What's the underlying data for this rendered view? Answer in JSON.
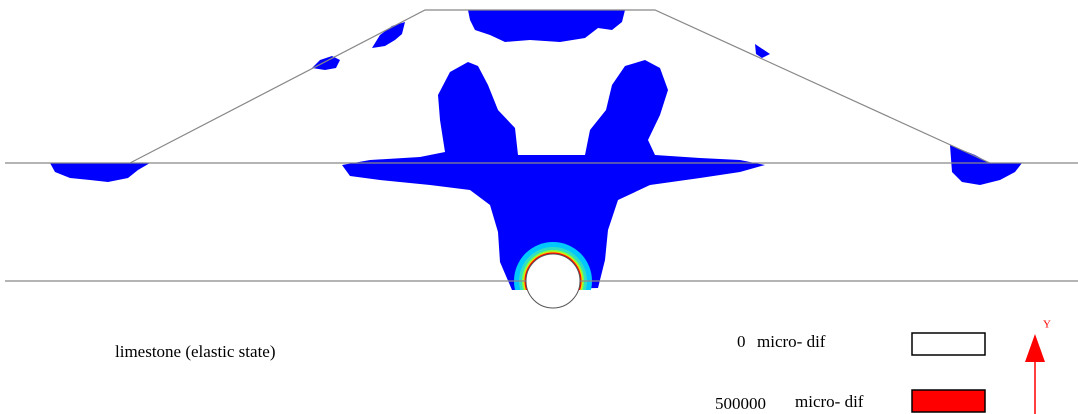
{
  "material_label": "limestone (elastic state)",
  "legend": {
    "items": [
      {
        "value": "0",
        "unit": "micro- dif"
      },
      {
        "value": "500000",
        "unit": "micro- dif"
      }
    ]
  },
  "axis": {
    "label": "Y"
  }
}
